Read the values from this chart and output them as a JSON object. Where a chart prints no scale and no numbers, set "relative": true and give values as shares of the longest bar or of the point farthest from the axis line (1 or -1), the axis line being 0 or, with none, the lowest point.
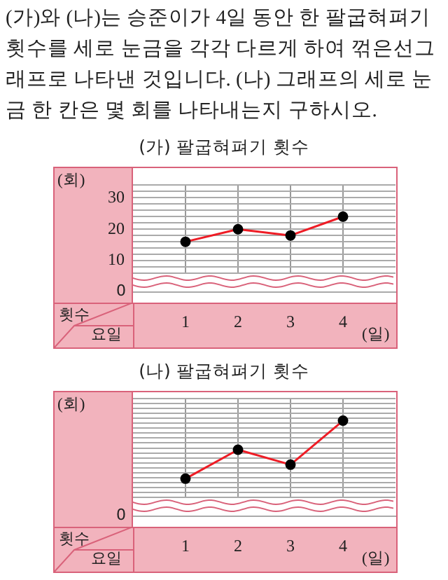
{
  "chart_data": [
    {
      "type": "other",
      "annotations": [
        "(가)와 (나)는 승준이가 4일 동안 한 팔굽혀펴기 횟수를 세로 눈금을 각각 다르게 하여 꺾은선그래프로 나타낸 것입니다. (나) 그래프의 세로 눈금 한 칸은 몇 회를 나타내는지 구하시오."
      ]
    },
    {
      "type": "line",
      "title": "(가) 팔굽혀펴기 횟수",
      "ylabel": "(회)",
      "xlabel": "(일)",
      "annotations": [
        "횟수",
        "요일",
        "0"
      ],
      "x": [
        1,
        2,
        3,
        4
      ],
      "xlim": [
        0,
        5
      ],
      "xticks": [
        1,
        2,
        3,
        4
      ],
      "ylim": [
        6,
        34
      ],
      "yticks": [
        {
          "value": 6,
          "label": null
        },
        {
          "value": 8,
          "label": null
        },
        10,
        {
          "value": 12,
          "label": null
        },
        {
          "value": 14,
          "label": null
        },
        {
          "value": 16,
          "label": null
        },
        {
          "value": 18,
          "label": null
        },
        20,
        {
          "value": 22,
          "label": null
        },
        {
          "value": 24,
          "label": null
        },
        {
          "value": 26,
          "label": null
        },
        {
          "value": 28,
          "label": null
        },
        30,
        {
          "value": 32,
          "label": null
        },
        {
          "value": 34,
          "label": null
        }
      ],
      "series": [
        {
          "color": "#ee1c25",
          "values": [
            16,
            20,
            18,
            24
          ]
        }
      ],
      "grid": true,
      "marker": "circle",
      "legend": false
    },
    {
      "type": "line",
      "title": "(나) 팔굽혀펴기 횟수",
      "ylabel": "(회)",
      "xlabel": "(일)",
      "annotations": [
        "횟수",
        "요일",
        "0"
      ],
      "x": [
        1,
        2,
        3,
        4
      ],
      "xlim": [
        0,
        5
      ],
      "xticks": [
        1,
        2,
        3,
        4
      ],
      "relative": true,
      "series": [
        {
          "color": "#ee1c25",
          "values": [
            0.38,
            0.69,
            0.53,
            1
          ]
        }
      ],
      "grid": true,
      "marker": "circle",
      "legend": false
    }
  ]
}
